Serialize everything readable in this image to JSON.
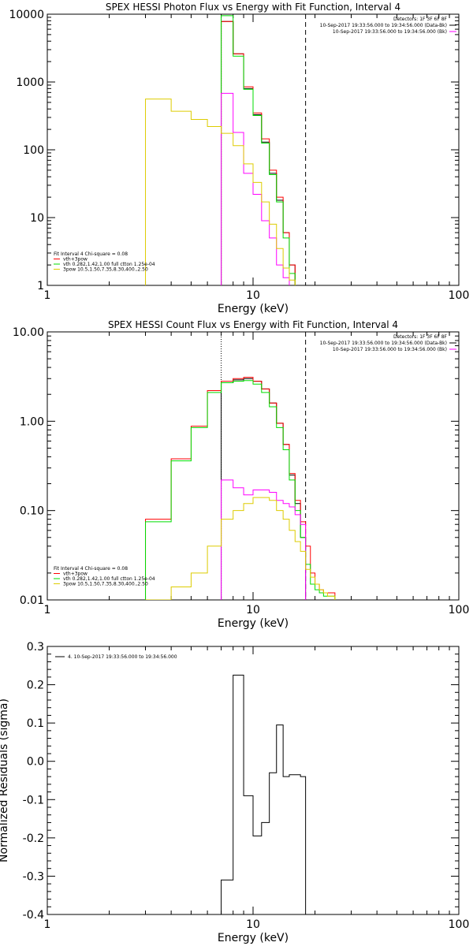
{
  "chart_data": [
    {
      "type": "line",
      "title": "SPEX HESSI Photon Flux vs Energy with Fit Function, Interval 4",
      "xlabel": "Energy (keV)",
      "ylabel": "",
      "xscale": "log",
      "yscale": "log",
      "xlim": [
        1,
        100
      ],
      "ylim": [
        1,
        10000
      ],
      "x_ticks": [
        "1",
        "10",
        "100"
      ],
      "y_ticks": [
        "1",
        "10",
        "100",
        "1000",
        "10000"
      ],
      "legend_top_right": [
        "Detectors: 1F 3F 6F 8F",
        "10-Sep-2017 19:33:56.000 to 19:34:56.000 (Data-Bk)",
        "10-Sep-2017 19:33:56.000 to 19:34:56.000 (Bk)"
      ],
      "legend_bottom_left": [
        "Fit Interval 4   Chi-square = 0.08",
        "vth+3pow",
        "vth 0.282,1.42,1.00  full ctton 1.25e-04",
        "3pow 10.5,1.50,7.35,8.30,400.,2.50"
      ],
      "vlines": [
        {
          "x": 7.0,
          "style": "dotted",
          "color": "#000000"
        },
        {
          "x": 18.0,
          "style": "dashed",
          "color": "#000000"
        }
      ],
      "series": [
        {
          "color": "#000000",
          "step": true,
          "x": [
            7,
            8,
            9,
            10,
            11,
            12,
            13,
            14,
            15,
            16,
            17,
            18
          ],
          "values": [
            7800,
            2600,
            800,
            330,
            130,
            45,
            18,
            6,
            2,
            null,
            null,
            null
          ]
        },
        {
          "color": "#ff0000",
          "step": true,
          "x": [
            7,
            8,
            9,
            10,
            11,
            12,
            13,
            14,
            15,
            16,
            17,
            18
          ],
          "values": [
            7800,
            2600,
            850,
            350,
            145,
            50,
            20,
            6,
            2,
            null,
            null,
            null
          ]
        },
        {
          "color": "#00dd00",
          "step": true,
          "x": [
            3,
            7,
            8,
            9,
            10,
            11,
            12,
            13,
            14,
            15,
            16,
            17,
            18
          ],
          "values": [
            null,
            9500,
            2400,
            780,
            320,
            125,
            43,
            17,
            5,
            1.5,
            null,
            null,
            null
          ]
        },
        {
          "color": "#ff00ff",
          "step": true,
          "x": [
            7,
            8,
            9,
            10,
            11,
            12,
            13,
            14,
            15,
            16,
            17,
            18
          ],
          "values": [
            680,
            180,
            45,
            22,
            9,
            5,
            2,
            1.3,
            null,
            null,
            null,
            null
          ]
        },
        {
          "color": "#ddcc00",
          "step": true,
          "x": [
            3,
            4,
            5,
            6,
            7,
            8,
            9,
            10,
            11,
            12,
            13,
            14,
            15,
            16,
            17,
            18
          ],
          "values": [
            560,
            370,
            280,
            220,
            175,
            115,
            62,
            33,
            17,
            8,
            3.5,
            1.8,
            1.2,
            null,
            null,
            null
          ]
        }
      ]
    },
    {
      "type": "line",
      "title": "SPEX HESSI Count Flux vs Energy with Fit Function, Interval 4",
      "xlabel": "Energy (keV)",
      "ylabel": "",
      "xscale": "log",
      "yscale": "log",
      "xlim": [
        1,
        100
      ],
      "ylim": [
        0.01,
        10
      ],
      "x_ticks": [
        "1",
        "10",
        "100"
      ],
      "y_ticks": [
        "0.01",
        "0.10",
        "1.00",
        "10.00"
      ],
      "legend_top_right": [
        "Detectors: 1F 3F 6F 8F",
        "10-Sep-2017 19:33:56.000 to 19:34:56.000 (Data-Bk)",
        "10-Sep-2017 19:33:56.000 to 19:34:56.000 (Bk)"
      ],
      "legend_bottom_left": [
        "Fit Interval 4   Chi-square = 0.08",
        "vth+3pow",
        "vth 0.282,1.42,1.00  full ctton 1.25e-04",
        "3pow 10.5,1.50,7.35,8.30,400.,2.50"
      ],
      "vlines": [
        {
          "x": 7.0,
          "style": "dotted",
          "color": "#000000"
        },
        {
          "x": 18.0,
          "style": "dashed",
          "color": "#000000"
        }
      ],
      "series": [
        {
          "color": "#000000",
          "step": true,
          "x": [
            7,
            8,
            9,
            10,
            11,
            12,
            13,
            14,
            15,
            16,
            17,
            18
          ],
          "values": [
            2.7,
            2.9,
            3.0,
            2.8,
            2.3,
            1.6,
            0.95,
            0.55,
            0.25,
            0.12,
            0.05,
            null
          ]
        },
        {
          "color": "#ff0000",
          "step": true,
          "x": [
            3,
            4,
            5,
            6,
            7,
            8,
            9,
            10,
            11,
            12,
            13,
            14,
            15,
            16,
            17,
            18,
            19,
            20,
            21,
            22,
            23,
            24,
            25
          ],
          "values": [
            0.08,
            0.38,
            0.88,
            2.2,
            2.8,
            3.0,
            3.1,
            2.8,
            2.3,
            1.6,
            0.95,
            0.55,
            0.26,
            0.13,
            0.075,
            0.04,
            0.02,
            0.015,
            0.013,
            0.012,
            0.012,
            0.012,
            null
          ]
        },
        {
          "color": "#00dd00",
          "step": true,
          "x": [
            3,
            4,
            5,
            6,
            7,
            8,
            9,
            10,
            11,
            12,
            13,
            14,
            15,
            16,
            17,
            18,
            19,
            20,
            21,
            22,
            23,
            24,
            25
          ],
          "values": [
            0.075,
            0.36,
            0.85,
            2.1,
            2.7,
            2.8,
            2.85,
            2.6,
            2.1,
            1.45,
            0.85,
            0.48,
            0.22,
            0.1,
            0.05,
            0.025,
            0.015,
            0.013,
            0.012,
            0.011,
            0.011,
            0.011,
            null
          ]
        },
        {
          "color": "#ff00ff",
          "step": true,
          "x": [
            7,
            8,
            9,
            10,
            11,
            12,
            13,
            14,
            15,
            16,
            17,
            18
          ],
          "values": [
            0.22,
            0.18,
            0.15,
            0.17,
            0.17,
            0.16,
            0.13,
            0.12,
            0.11,
            0.09,
            0.07,
            null
          ]
        },
        {
          "color": "#ddcc00",
          "step": true,
          "x": [
            3,
            4,
            5,
            6,
            7,
            8,
            9,
            10,
            11,
            12,
            13,
            14,
            15,
            16,
            17,
            18,
            19,
            20,
            21,
            22,
            23,
            24,
            25
          ],
          "values": [
            0.01,
            0.014,
            0.02,
            0.04,
            0.08,
            0.1,
            0.12,
            0.14,
            0.14,
            0.13,
            0.1,
            0.08,
            0.06,
            0.045,
            0.035,
            0.022,
            0.018,
            0.015,
            0.013,
            0.012,
            0.011,
            0.011,
            null
          ]
        }
      ]
    },
    {
      "type": "line",
      "title": "",
      "xlabel": "Energy (keV)",
      "ylabel": "Normalized Residuals (sigma)",
      "xscale": "log",
      "yscale": "linear",
      "xlim": [
        1,
        100
      ],
      "ylim": [
        -0.4,
        0.3
      ],
      "x_ticks": [
        "1",
        "10",
        "100"
      ],
      "y_ticks": [
        "-0.4",
        "-0.3",
        "-0.2",
        "-0.1",
        "0.0",
        "0.1",
        "0.2",
        "0.3"
      ],
      "legend": [
        "4. 10-Sep-2017 19:33:56.000 to 19:34:56.000"
      ],
      "series": [
        {
          "name": "4. 10-Sep-2017 19:33:56.000 to 19:34:56.000",
          "color": "#000000",
          "step": true,
          "x": [
            7,
            8,
            9,
            10,
            11,
            12,
            13,
            14,
            15,
            16,
            17,
            18
          ],
          "values": [
            -0.31,
            0.225,
            -0.09,
            -0.195,
            -0.16,
            -0.03,
            0.095,
            -0.04,
            -0.035,
            -0.035,
            -0.04,
            null
          ]
        }
      ]
    }
  ]
}
